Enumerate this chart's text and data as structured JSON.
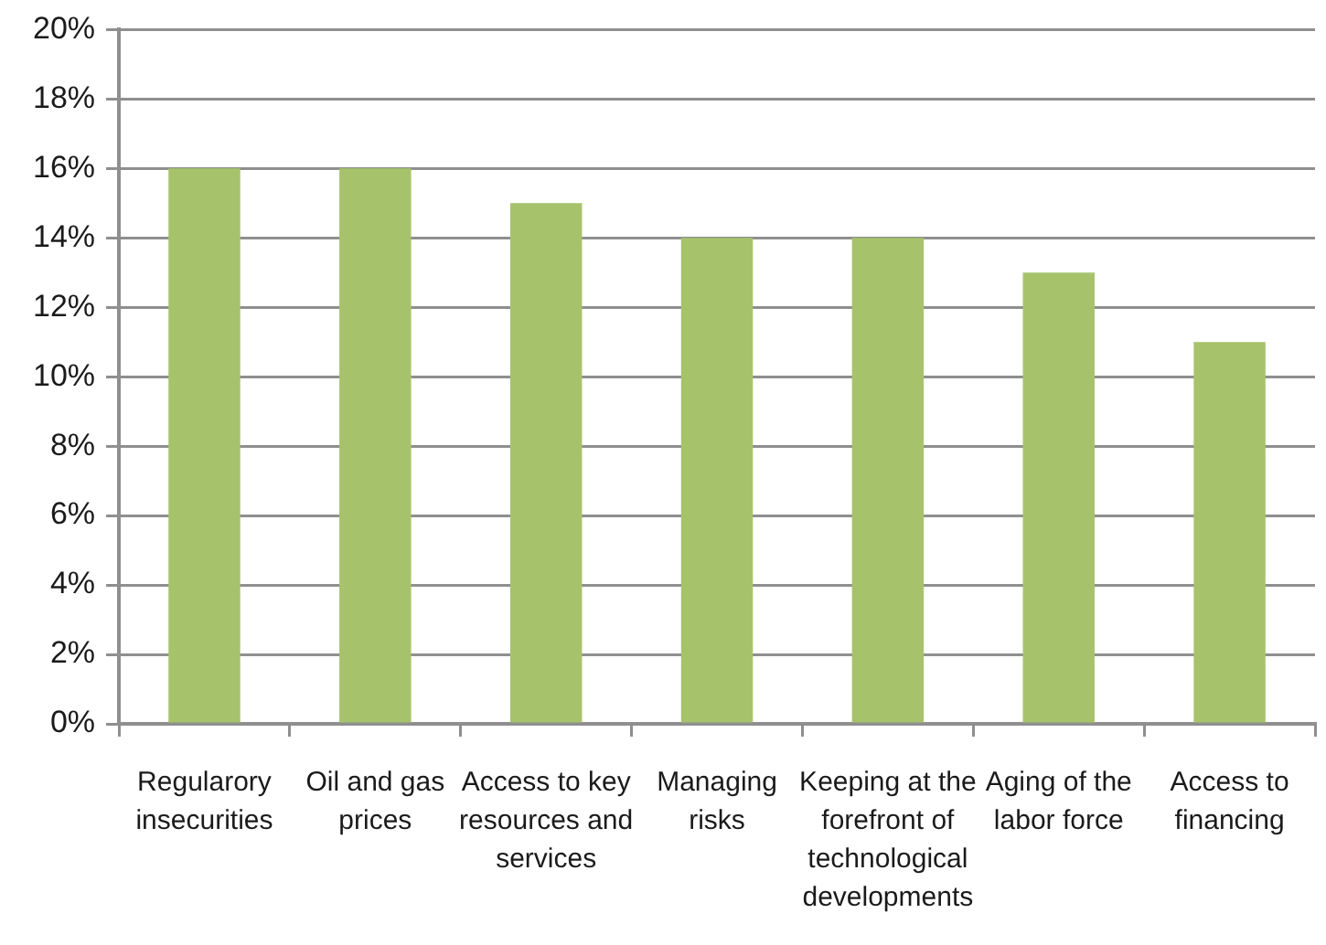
{
  "chart_data": {
    "type": "bar",
    "categories": [
      "Regularory insecurities",
      "Oil and gas prices",
      "Access to key resources and services",
      "Managing risks",
      "Keeping at the forefront of technological developments",
      "Aging of the labor force",
      "Access to financing"
    ],
    "values": [
      16,
      16,
      15,
      14,
      14,
      13,
      11
    ],
    "color": "#a6c36b",
    "ylim": [
      0,
      20
    ],
    "yticks": [
      {
        "value": 0,
        "label": "0%"
      },
      {
        "value": 2,
        "label": "2%"
      },
      {
        "value": 4,
        "label": "4%"
      },
      {
        "value": 6,
        "label": "6%"
      },
      {
        "value": 8,
        "label": "8%"
      },
      {
        "value": 10,
        "label": "10%"
      },
      {
        "value": 12,
        "label": "12%"
      },
      {
        "value": 14,
        "label": "14%"
      },
      {
        "value": 16,
        "label": "16%"
      },
      {
        "value": 18,
        "label": "18%"
      },
      {
        "value": 20,
        "label": "20%"
      }
    ],
    "grid": "y"
  }
}
